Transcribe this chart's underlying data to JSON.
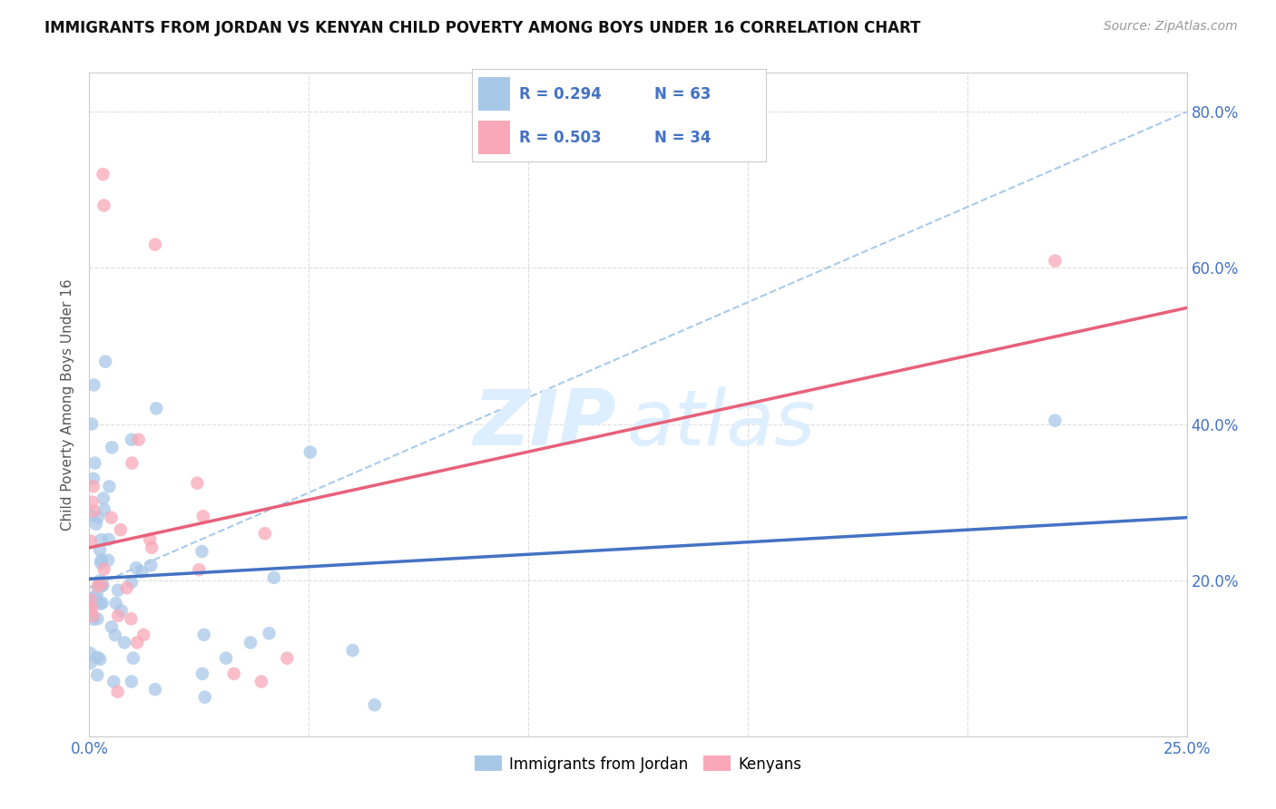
{
  "title": "IMMIGRANTS FROM JORDAN VS KENYAN CHILD POVERTY AMONG BOYS UNDER 16 CORRELATION CHART",
  "source": "Source: ZipAtlas.com",
  "ylabel": "Child Poverty Among Boys Under 16",
  "xlim": [
    0,
    0.25
  ],
  "ylim": [
    0,
    0.85
  ],
  "xtick_vals": [
    0.0,
    0.05,
    0.1,
    0.15,
    0.2,
    0.25
  ],
  "xtick_labels": [
    "0.0%",
    "",
    "",
    "",
    "",
    "25.0%"
  ],
  "ytick_vals": [
    0.0,
    0.2,
    0.4,
    0.6,
    0.8
  ],
  "ytick_labels_right": [
    "",
    "20.0%",
    "40.0%",
    "60.0%",
    "80.0%"
  ],
  "legend_r1": "R = 0.294",
  "legend_n1": "N = 63",
  "legend_r2": "R = 0.503",
  "legend_n2": "N = 34",
  "color_jordan": "#a8c8e8",
  "color_kenya": "#f8a8b8",
  "color_jordan_line": "#4472c4",
  "color_kenya_line": "#e8607a",
  "color_dashed": "#9fc5e8",
  "color_text_blue": "#4472c4",
  "color_axis_label": "#555555",
  "color_grid": "#dddddd",
  "watermark_color": "#ddeeff",
  "background_color": "#ffffff",
  "legend_box_color": "#f5f5f5",
  "legend_border_color": "#cccccc"
}
